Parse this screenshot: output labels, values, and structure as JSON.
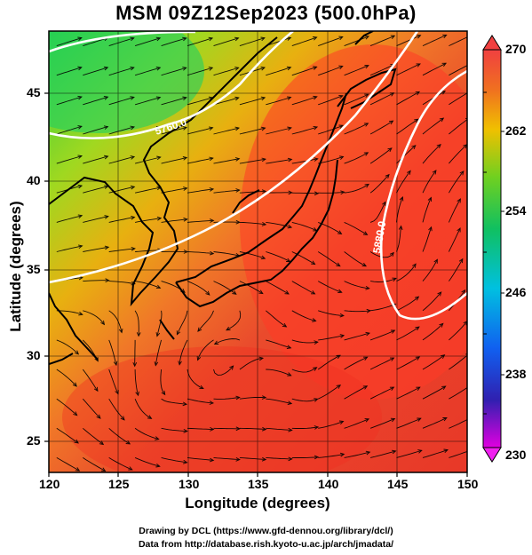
{
  "title": "MSM 09Z12Sep2023 (500.0hPa)",
  "x_axis": {
    "label": "Longitude (degrees)",
    "ticks": [
      "120",
      "125",
      "130",
      "135",
      "140",
      "145",
      "150"
    ]
  },
  "y_axis": {
    "label": "Latitude  (degrees)",
    "ticks": [
      "45",
      "40",
      "35",
      "30",
      "25"
    ]
  },
  "colorbar": {
    "ticks": [
      "270",
      "262",
      "254",
      "246",
      "238",
      "230"
    ],
    "range": [
      230,
      270
    ],
    "colors": [
      "#ff00ff",
      "#2020c0",
      "#00a0ff",
      "#00d0a0",
      "#20c020",
      "#c0d000",
      "#f0a000",
      "#f07020",
      "#e83020",
      "#f05050"
    ]
  },
  "contours": [
    {
      "label": "5760.0"
    },
    {
      "label": "5880.0"
    }
  ],
  "credits": {
    "line1": "Drawing by DCL (https://www.gfd-dennou.org/library/dcl/)",
    "line2": "Data from http://database.rish.kyoto-u.ac.jp/arch/jmadata/"
  },
  "map": {
    "lon_range": [
      120,
      150
    ],
    "lat_range": [
      22.5,
      47.5
    ]
  }
}
